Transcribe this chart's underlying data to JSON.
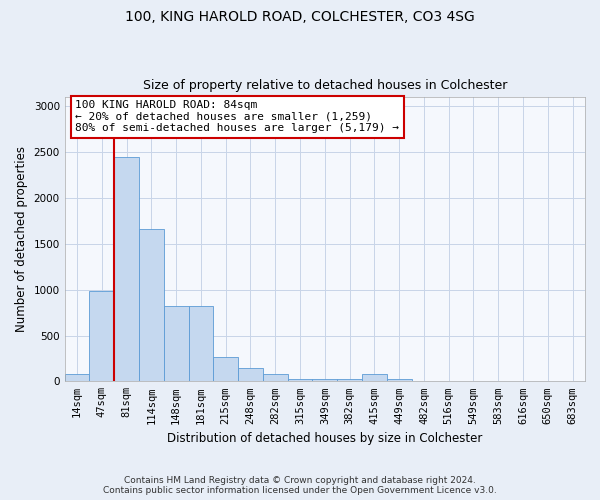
{
  "title1": "100, KING HAROLD ROAD, COLCHESTER, CO3 4SG",
  "title2": "Size of property relative to detached houses in Colchester",
  "xlabel": "Distribution of detached houses by size in Colchester",
  "ylabel": "Number of detached properties",
  "categories": [
    "14sqm",
    "47sqm",
    "81sqm",
    "114sqm",
    "148sqm",
    "181sqm",
    "215sqm",
    "248sqm",
    "282sqm",
    "315sqm",
    "349sqm",
    "382sqm",
    "415sqm",
    "449sqm",
    "482sqm",
    "516sqm",
    "549sqm",
    "583sqm",
    "616sqm",
    "650sqm",
    "683sqm"
  ],
  "values": [
    75,
    985,
    2450,
    1660,
    820,
    820,
    260,
    145,
    75,
    30,
    30,
    30,
    75,
    30,
    0,
    0,
    0,
    0,
    0,
    0,
    0
  ],
  "bar_color": "#c5d8ef",
  "bar_edge_color": "#5b9bd5",
  "vline_color": "#cc0000",
  "annotation_text": "100 KING HAROLD ROAD: 84sqm\n← 20% of detached houses are smaller (1,259)\n80% of semi-detached houses are larger (5,179) →",
  "annotation_box_color": "#cc0000",
  "ylim": [
    0,
    3100
  ],
  "yticks": [
    0,
    500,
    1000,
    1500,
    2000,
    2500,
    3000
  ],
  "bg_color": "#e8eef7",
  "plot_bg_color": "#f5f8fd",
  "grid_color": "#c8d4e8",
  "footer1": "Contains HM Land Registry data © Crown copyright and database right 2024.",
  "footer2": "Contains public sector information licensed under the Open Government Licence v3.0.",
  "title1_fontsize": 10,
  "title2_fontsize": 9,
  "xlabel_fontsize": 8.5,
  "ylabel_fontsize": 8.5,
  "tick_fontsize": 7.5,
  "annotation_fontsize": 8,
  "footer_fontsize": 6.5
}
